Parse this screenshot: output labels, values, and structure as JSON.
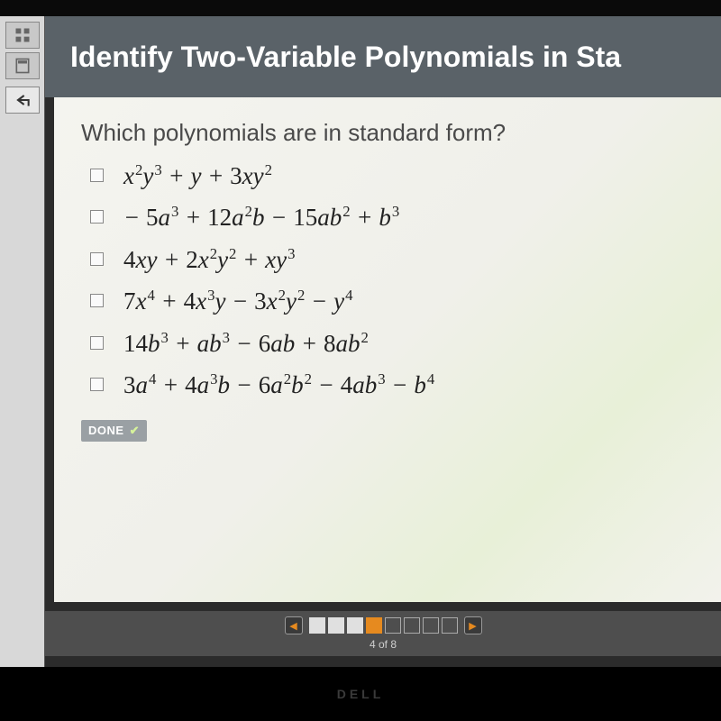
{
  "header": {
    "title": "Identify Two-Variable Polynomials in Sta"
  },
  "question": "Which polynomials are in standard form?",
  "options": [
    {
      "html": "<span class='var'>x</span><sup>2</sup><span class='var'>y</span><sup>3</sup> + <span class='var'>y</span> + <span class='num'>3</span><span class='var'>xy</span><sup>2</sup>"
    },
    {
      "html": "&minus; <span class='num'>5</span><span class='var'>a</span><sup>3</sup> + <span class='num'>12</span><span class='var'>a</span><sup>2</sup><span class='var'>b</span> &minus; <span class='num'>15</span><span class='var'>ab</span><sup>2</sup> + <span class='var'>b</span><sup>3</sup>"
    },
    {
      "html": "<span class='num'>4</span><span class='var'>xy</span> + <span class='num'>2</span><span class='var'>x</span><sup>2</sup><span class='var'>y</span><sup>2</sup> + <span class='var'>xy</span><sup>3</sup>"
    },
    {
      "html": "<span class='num'>7</span><span class='var'>x</span><sup>4</sup> + <span class='num'>4</span><span class='var'>x</span><sup>3</sup><span class='var'>y</span> &minus; <span class='num'>3</span><span class='var'>x</span><sup>2</sup><span class='var'>y</span><sup>2</sup> &minus; <span class='var'>y</span><sup>4</sup>"
    },
    {
      "html": "<span class='num'>14</span><span class='var'>b</span><sup>3</sup> + <span class='var'>ab</span><sup>3</sup> &minus; <span class='num'>6</span><span class='var'>ab</span> + <span class='num'>8</span><span class='var'>ab</span><sup>2</sup>"
    },
    {
      "html": "<span class='num'>3</span><span class='var'>a</span><sup>4</sup> + <span class='num'>4</span><span class='var'>a</span><sup>3</sup><span class='var'>b</span> &minus; <span class='num'>6</span><span class='var'>a</span><sup>2</sup><span class='var'>b</span><sup>2</sup> &minus; <span class='num'>4</span><span class='var'>ab</span><sup>3</sup> &minus; <span class='var'>b</span><sup>4</sup>"
    }
  ],
  "done_label": "DONE",
  "pager": {
    "total": 8,
    "current": 4,
    "label": "4 of 8",
    "completed": [
      1,
      2,
      3
    ],
    "prev_glyph": "◀",
    "next_glyph": "▶"
  },
  "colors": {
    "header_bg": "#5a6268",
    "accent": "#e68a1f",
    "done_bg": "#9aa0a4"
  },
  "bezel_logo": "DELL"
}
